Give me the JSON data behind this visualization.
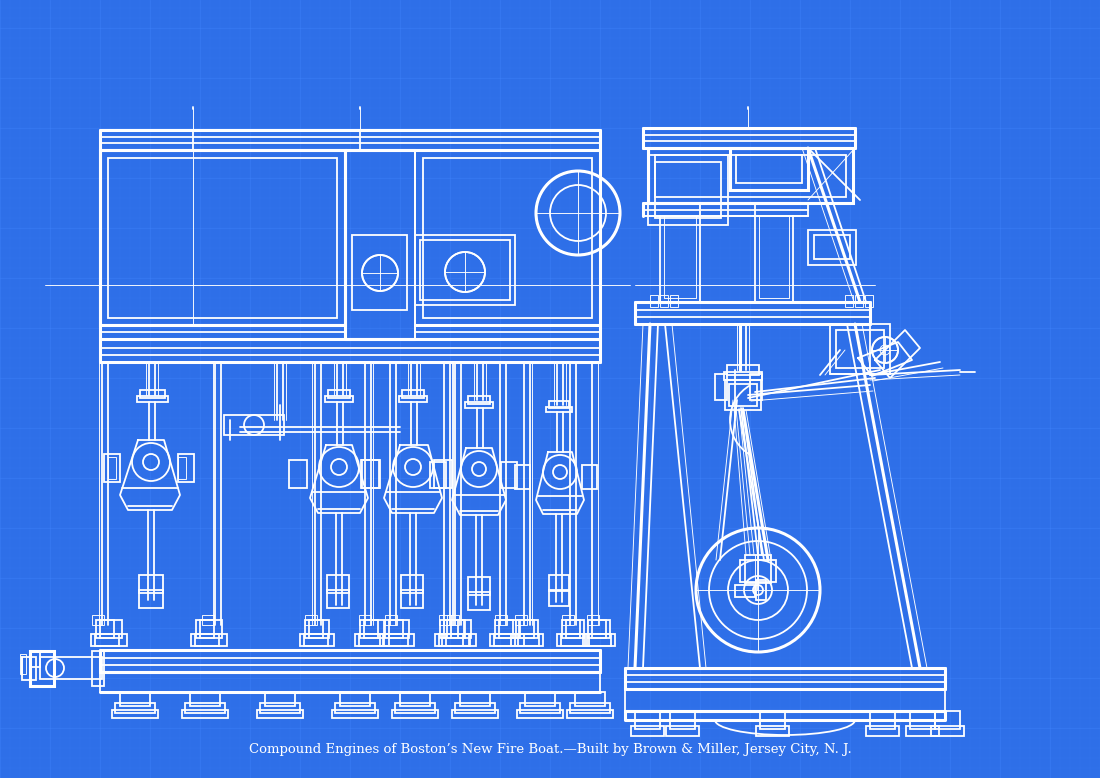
{
  "bg_color": "#2E6FE8",
  "grid_minor_color": "#3D7EF5",
  "grid_major_color": "#4488FF",
  "line_color": "#ffffff",
  "title_text": "Compound Engines of Boston’s New Fire Boat.—Built by Brown & Miller, Jersey City, N. J.",
  "fig_width": 11.0,
  "fig_height": 7.78,
  "dpi": 100,
  "lw": 1.3,
  "lw_thick": 2.2,
  "lw_thin": 0.65
}
